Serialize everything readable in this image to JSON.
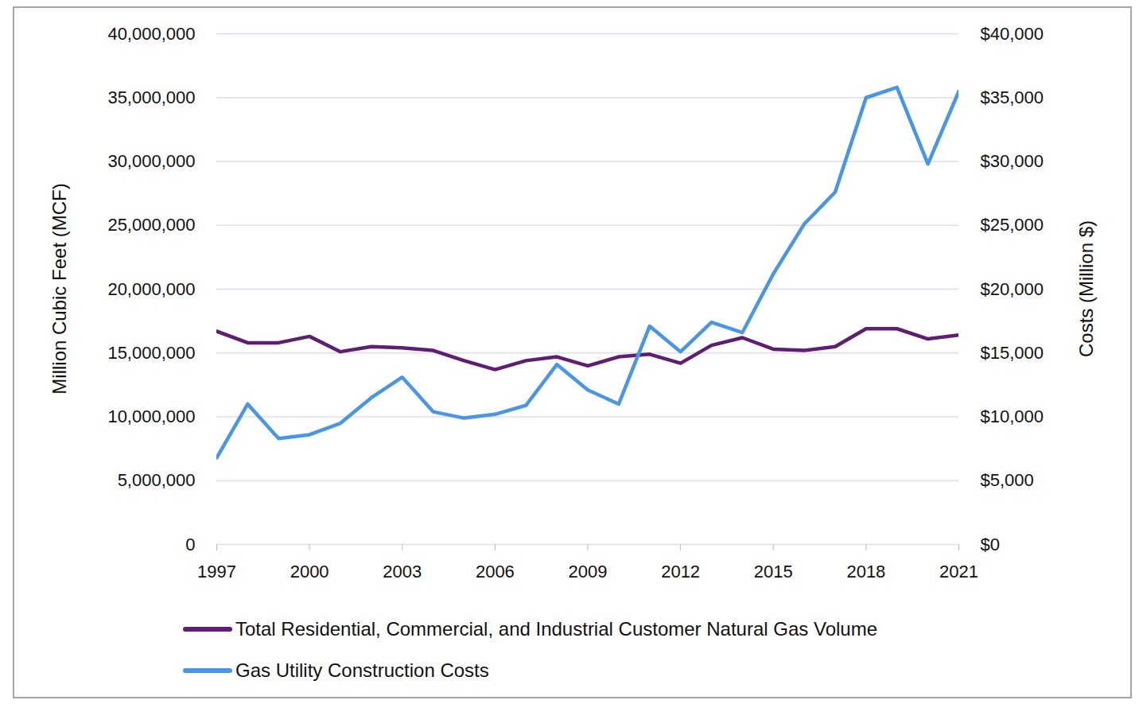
{
  "chart_data": {
    "type": "line",
    "x": [
      1997,
      1998,
      1999,
      2000,
      2001,
      2002,
      2003,
      2004,
      2005,
      2006,
      2007,
      2008,
      2009,
      2010,
      2011,
      2012,
      2013,
      2014,
      2015,
      2016,
      2017,
      2018,
      2019,
      2020,
      2021
    ],
    "xlim": [
      1997,
      2021
    ],
    "xticks": [
      1997,
      2000,
      2003,
      2006,
      2009,
      2012,
      2015,
      2018,
      2021
    ],
    "ylabel": "Million Cubic Feet (MCF)",
    "y2label": "Costs (Million $)",
    "ylim": [
      0,
      40000000
    ],
    "yticks": [
      0,
      {
        "value": 5000000,
        "label": "5,000,000"
      },
      {
        "value": 10000000,
        "label": "10,000,000"
      },
      {
        "value": 15000000,
        "label": "15,000,000"
      },
      {
        "value": 20000000,
        "label": "20,000,000"
      },
      {
        "value": 25000000,
        "label": "25,000,000"
      },
      {
        "value": 30000000,
        "label": "30,000,000"
      },
      {
        "value": 35000000,
        "label": "35,000,000"
      },
      {
        "value": 40000000,
        "label": "40,000,000"
      }
    ],
    "y2lim": [
      0,
      40000
    ],
    "y2ticks": [
      {
        "value": 0,
        "label": "$0"
      },
      {
        "value": 5000,
        "label": "$5,000"
      },
      {
        "value": 10000,
        "label": "$10,000"
      },
      {
        "value": 15000,
        "label": "$15,000"
      },
      {
        "value": 20000,
        "label": "$20,000"
      },
      {
        "value": 25000,
        "label": "$25,000"
      },
      {
        "value": 30000,
        "label": "$30,000"
      },
      {
        "value": 35000,
        "label": "$35,000"
      },
      {
        "value": 40000,
        "label": "$40,000"
      }
    ],
    "grid": true,
    "legend": "bottom",
    "series": [
      {
        "name": "Total Residential, Commercial, and Industrial Customer Natural Gas Volume",
        "color": "#5e1f73",
        "values": [
          16700000,
          15800000,
          15800000,
          16300000,
          15100000,
          15500000,
          15400000,
          15200000,
          14400000,
          13700000,
          14400000,
          14700000,
          14000000,
          14700000,
          14900000,
          14200000,
          15600000,
          16200000,
          15300000,
          15200000,
          15500000,
          16900000,
          16900000,
          16100000,
          16400000
        ]
      },
      {
        "name": "Gas Utility Construction Costs",
        "color": "#4a96e4",
        "axis": "y2",
        "values": [
          6800,
          11000,
          8300,
          8600,
          9500,
          11500,
          13100,
          10400,
          9900,
          10200,
          10900,
          14100,
          12100,
          11000,
          17100,
          15100,
          17400,
          16600,
          21200,
          25100,
          27600,
          35000,
          35800,
          29800,
          35500
        ]
      }
    ]
  }
}
